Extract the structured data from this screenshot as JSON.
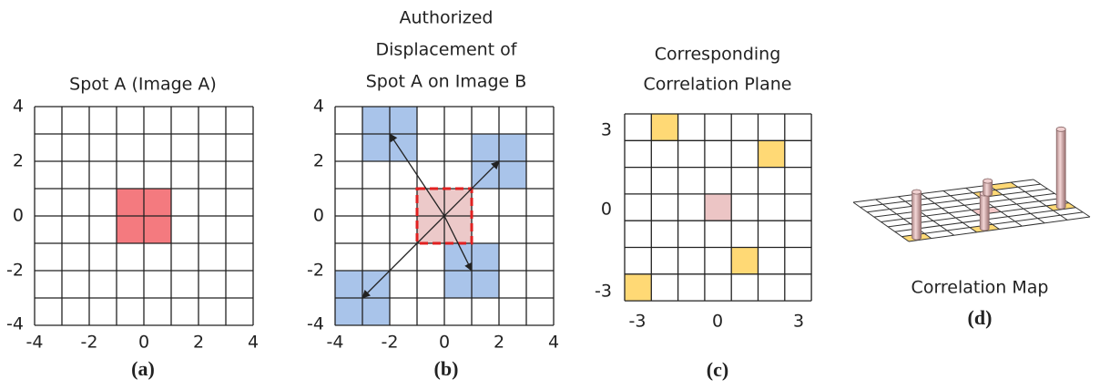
{
  "panels": [
    {
      "title": [
        "Spot A (Image A)"
      ],
      "xticks": [
        "-4",
        "-2",
        "0",
        "2",
        "4"
      ],
      "yticks": [
        "4",
        "2",
        "0",
        "-2",
        "-4"
      ],
      "label": "(a)"
    },
    {
      "title": [
        "Authorized",
        "Displacement of",
        "Spot A on Image B"
      ],
      "xticks": [
        "-4",
        "-2",
        "0",
        "2",
        "4"
      ],
      "yticks": [
        "4",
        "2",
        "0",
        "-2",
        "-4"
      ],
      "label": "(b)"
    },
    {
      "title": [
        "Corresponding",
        "Correlation Plane"
      ],
      "xticks": [
        "-3",
        "0",
        "3"
      ],
      "yticks": [
        "3",
        "0",
        "-3"
      ],
      "label": "(c)"
    },
    {
      "title": [
        "Correlation Map"
      ],
      "label": "(d)"
    }
  ]
}
